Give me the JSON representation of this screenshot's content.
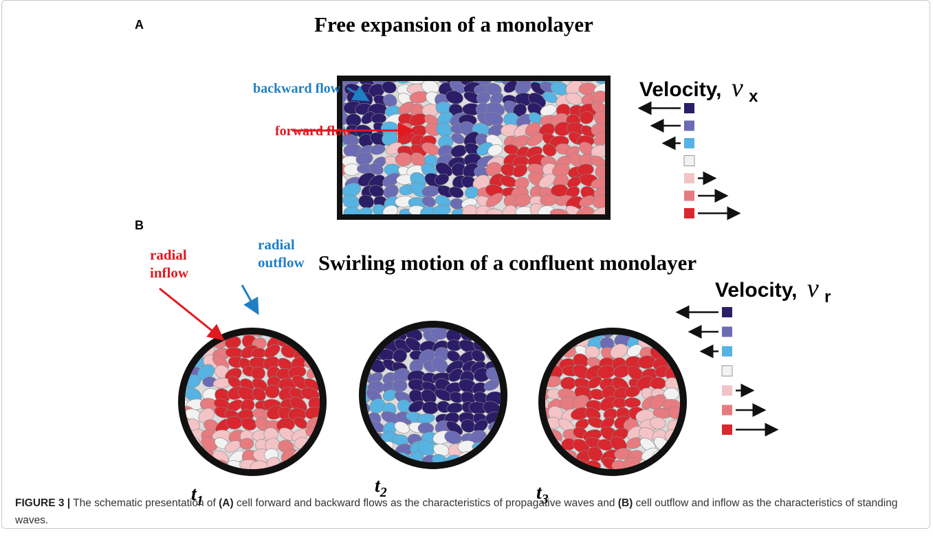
{
  "panel_a": {
    "label": "A",
    "title": "Free expansion of a monolayer",
    "backward_label": "backward flow",
    "forward_label": "forward flow",
    "legend": {
      "title": "Velocity,",
      "symbol": "v",
      "subscript": "x"
    }
  },
  "panel_b": {
    "label": "B",
    "title": "Swirling motion of a confluent monolayer",
    "inflow_label": [
      "radial",
      "inflow"
    ],
    "outflow_label": [
      "radial",
      "outflow"
    ],
    "legend": {
      "title": "Velocity,",
      "symbol": "v",
      "subscript": "r"
    },
    "time_points": [
      {
        "symbol": "t",
        "subscript": "1"
      },
      {
        "symbol": "t",
        "subscript": "2"
      },
      {
        "symbol": "t",
        "subscript": "3"
      }
    ]
  },
  "caption": {
    "label": "FIGURE 3 |",
    "parts": [
      " The schematic presentation of ",
      "(A)",
      " cell forward and backward flows as the characteristics of propagative waves and ",
      "(B)",
      " cell outflow and inflow as the characteristics of standing waves."
    ]
  }
}
